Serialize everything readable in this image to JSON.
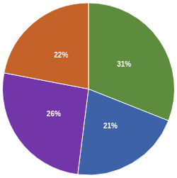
{
  "chart_data": {
    "type": "pie",
    "values": [
      31,
      21,
      26,
      22
    ],
    "value_labels": [
      "31%",
      "21%",
      "26%",
      "22%"
    ],
    "colors": [
      "#5e8c3e",
      "#3d62a8",
      "#7336a8",
      "#c5622a"
    ],
    "data_labels": true
  }
}
